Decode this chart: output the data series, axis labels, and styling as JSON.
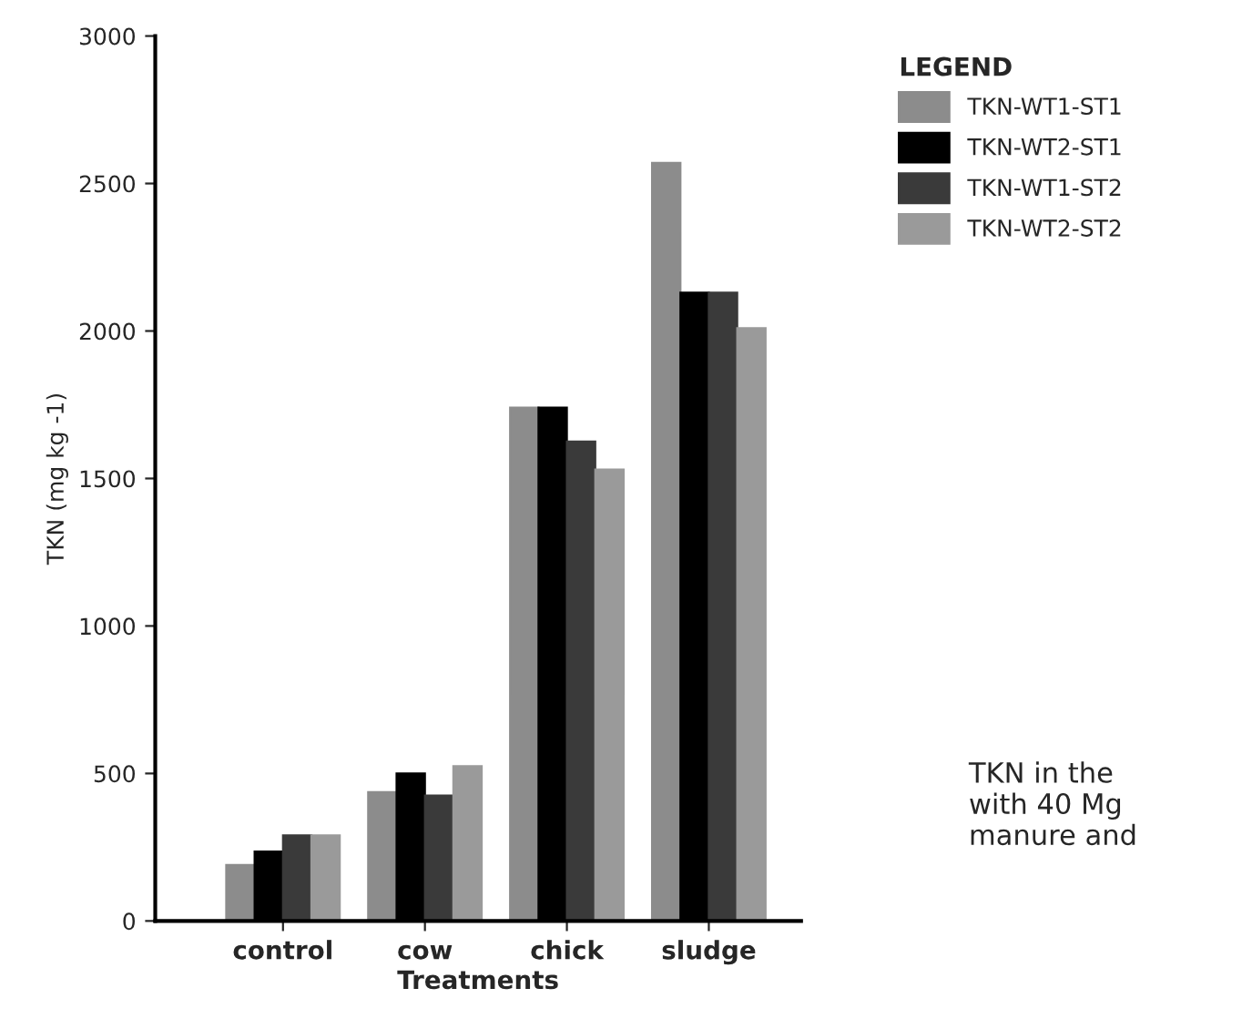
{
  "chart_data": {
    "type": "bar",
    "xlabel": "Treatments",
    "ylabel": "TKN (mg kg -1)",
    "legend_title": "LEGEND",
    "categories": [
      "control",
      "cow",
      "chick",
      "sludge"
    ],
    "series": [
      {
        "name": "TKN-WT1-ST1",
        "color": "#8c8c8c",
        "values": [
          190,
          437,
          1740,
          2570
        ]
      },
      {
        "name": "TKN-WT2-ST1",
        "color": "#000000",
        "values": [
          235,
          500,
          1740,
          2130
        ]
      },
      {
        "name": "TKN-WT1-ST2",
        "color": "#3a3a3a",
        "values": [
          290,
          425,
          1625,
          2130
        ]
      },
      {
        "name": "TKN-WT2-ST2",
        "color": "#9a9a9a",
        "values": [
          290,
          525,
          1530,
          2010
        ]
      }
    ],
    "ylim": [
      0,
      3000
    ],
    "yticks": [
      0,
      500,
      1000,
      1500,
      2000,
      2500,
      3000
    ],
    "grid": false,
    "legend": "top right",
    "annotations": [
      "TKN in the\nwith 40 Mg\nmanure and"
    ]
  }
}
